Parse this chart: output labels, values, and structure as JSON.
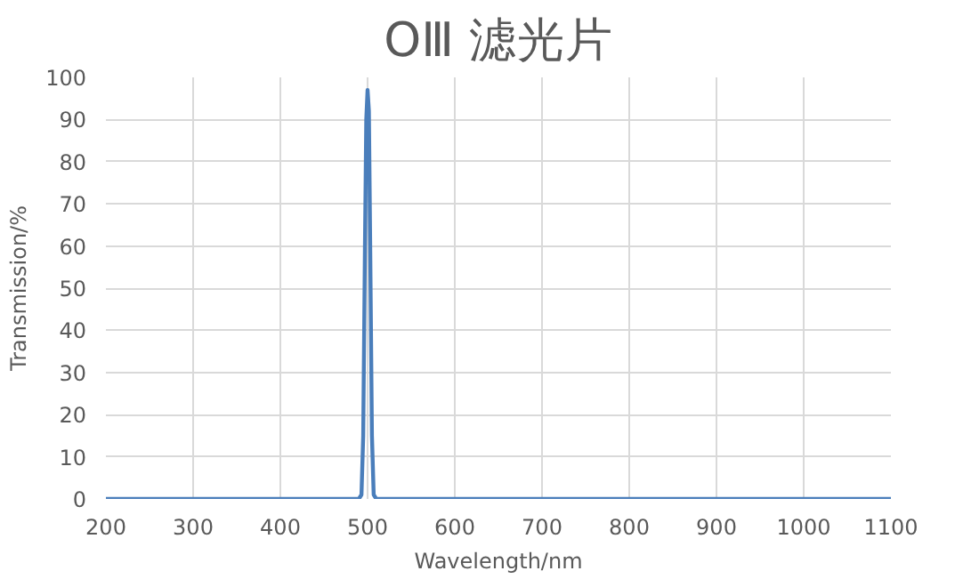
{
  "chart_data": {
    "type": "line",
    "title": "OⅢ 滤光片",
    "xlabel": "Wavelength/nm",
    "ylabel": "Transmission/%",
    "x": [
      200,
      300,
      400,
      480,
      490,
      493,
      495,
      497,
      498.5,
      500,
      501.5,
      503,
      505,
      507,
      510,
      520,
      600,
      700,
      800,
      900,
      1000,
      1100
    ],
    "series": [
      {
        "color": "#4a7ebb",
        "values": [
          0,
          0,
          0,
          0,
          0,
          1,
          15,
          60,
          90,
          97,
          92,
          60,
          15,
          1,
          0,
          0,
          0,
          0,
          0,
          0,
          0,
          0
        ]
      }
    ],
    "xlim": [
      200,
      1100
    ],
    "xticks": [
      200,
      300,
      400,
      500,
      600,
      700,
      800,
      900,
      1000,
      1100
    ],
    "ylim": [
      0,
      100
    ],
    "yticks": [
      0,
      10,
      20,
      30,
      40,
      50,
      60,
      70,
      80,
      90,
      100
    ],
    "grid": true,
    "marker": "none",
    "line_style": "solid"
  }
}
